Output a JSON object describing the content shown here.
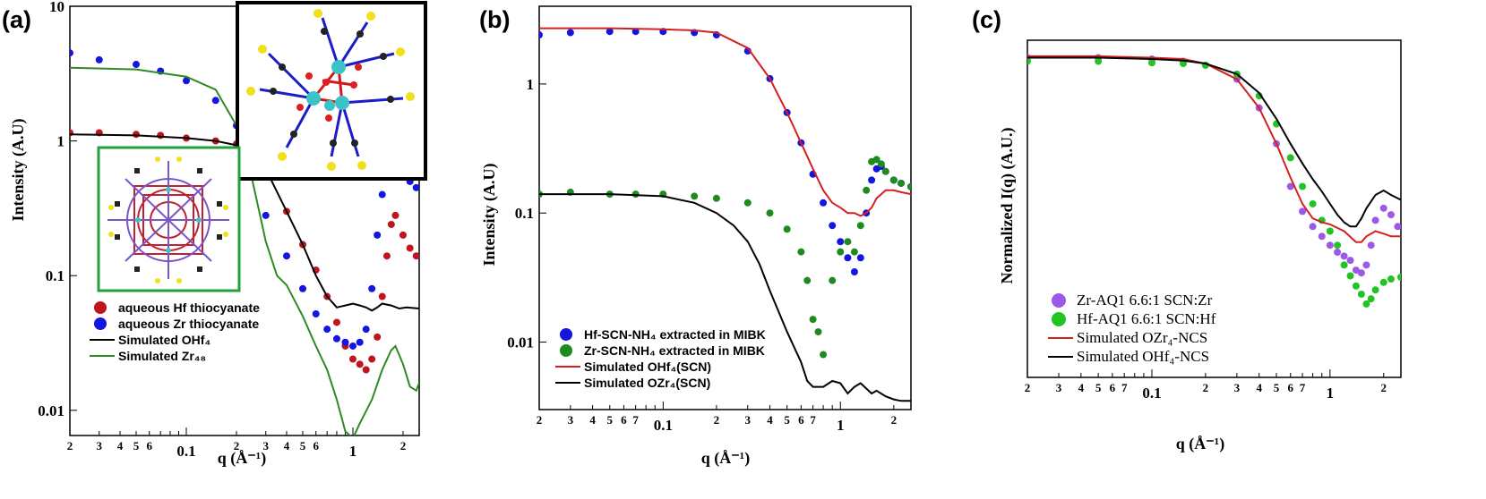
{
  "chart_data": [
    {
      "panel_label": "(a)",
      "type": "scatter",
      "xscale": "log",
      "yscale": "log",
      "xlim": [
        0.02,
        2.5
      ],
      "ylim": [
        0.0065,
        10
      ],
      "xlabel": "q (Å⁻¹)",
      "ylabel": "Intensity (A.U)",
      "xticks": [
        "2",
        "3",
        "4",
        "5",
        "6",
        "0.1",
        "2",
        "3",
        "4",
        "5",
        "6",
        "1",
        "2"
      ],
      "yticks": [
        "10",
        "1",
        "0.1",
        "0.01"
      ],
      "legend_position": "bottom-left",
      "series": [
        {
          "name": "aqueous Hf thiocyanate",
          "kind": "points",
          "color": "#c0151c",
          "x": [
            0.02,
            0.03,
            0.05,
            0.07,
            0.1,
            0.15,
            0.2,
            0.3,
            0.4,
            0.5,
            0.6,
            0.7,
            0.8,
            0.9,
            1.0,
            1.1,
            1.2,
            1.3,
            1.4,
            1.5,
            1.6,
            1.7,
            1.8,
            2.0,
            2.2,
            2.4
          ],
          "y": [
            1.15,
            1.15,
            1.12,
            1.1,
            1.05,
            1.0,
            0.95,
            0.62,
            0.3,
            0.17,
            0.11,
            0.07,
            0.045,
            0.03,
            0.024,
            0.022,
            0.02,
            0.024,
            0.035,
            0.07,
            0.14,
            0.24,
            0.28,
            0.2,
            0.16,
            0.14
          ]
        },
        {
          "name": "aqueous Zr thiocyanate",
          "kind": "points",
          "color": "#1515e0",
          "x": [
            0.02,
            0.03,
            0.05,
            0.07,
            0.1,
            0.15,
            0.2,
            0.3,
            0.4,
            0.5,
            0.6,
            0.7,
            0.8,
            0.9,
            1.0,
            1.1,
            1.2,
            1.3,
            1.4,
            1.5,
            1.6,
            1.8,
            2.0,
            2.2,
            2.4
          ],
          "y": [
            4.5,
            4.0,
            3.7,
            3.3,
            2.8,
            2.0,
            1.3,
            0.28,
            0.14,
            0.08,
            0.052,
            0.04,
            0.034,
            0.032,
            0.03,
            0.032,
            0.04,
            0.08,
            0.2,
            0.4,
            0.6,
            0.7,
            0.6,
            0.5,
            0.45
          ]
        },
        {
          "name": "Simulated OHf₄",
          "kind": "line",
          "color": "#000000",
          "x": [
            0.02,
            0.05,
            0.1,
            0.15,
            0.2,
            0.25,
            0.3,
            0.4,
            0.5,
            0.6,
            0.7,
            0.8,
            0.9,
            1.0,
            1.1,
            1.2,
            1.3,
            1.4,
            1.5,
            1.7,
            1.9,
            2.1,
            2.5
          ],
          "y": [
            1.12,
            1.1,
            1.05,
            1.0,
            0.93,
            0.8,
            0.62,
            0.3,
            0.17,
            0.1,
            0.07,
            0.058,
            0.06,
            0.062,
            0.06,
            0.058,
            0.055,
            0.058,
            0.062,
            0.06,
            0.057,
            0.058,
            0.057
          ]
        },
        {
          "name": "Simulated Zr₄₈",
          "kind": "line",
          "color": "#2e8b22",
          "x": [
            0.02,
            0.05,
            0.1,
            0.15,
            0.2,
            0.25,
            0.3,
            0.35,
            0.4,
            0.5,
            0.6,
            0.7,
            0.8,
            0.9,
            1.0,
            1.1,
            1.3,
            1.5,
            1.7,
            1.8,
            2.0,
            2.2,
            2.4,
            2.5
          ],
          "y": [
            3.5,
            3.4,
            3.0,
            2.4,
            1.3,
            0.5,
            0.18,
            0.1,
            0.085,
            0.05,
            0.03,
            0.02,
            0.012,
            0.007,
            0.0062,
            0.008,
            0.012,
            0.02,
            0.028,
            0.03,
            0.022,
            0.015,
            0.014,
            0.016
          ]
        }
      ]
    },
    {
      "panel_label": "(b)",
      "type": "scatter",
      "xscale": "log",
      "yscale": "log",
      "xlim": [
        0.02,
        2.5
      ],
      "ylim": [
        0.003,
        4
      ],
      "xlabel": "q (Å⁻¹)",
      "ylabel": "Intensity (A.U)",
      "xticks": [
        "2",
        "3",
        "4",
        "5",
        "6",
        "7",
        "0.1",
        "2",
        "3",
        "4",
        "5",
        "6",
        "7",
        "1",
        "2"
      ],
      "yticks": [
        "1",
        "0.1",
        "0.01"
      ],
      "legend_position": "bottom-left",
      "series": [
        {
          "name": "Hf-SCN-NH₄ extracted in MIBK",
          "kind": "points",
          "color": "#1515e0",
          "x": [
            0.02,
            0.03,
            0.05,
            0.07,
            0.1,
            0.15,
            0.2,
            0.3,
            0.4,
            0.5,
            0.6,
            0.7,
            0.8,
            0.9,
            1.0,
            1.1,
            1.2,
            1.3,
            1.4,
            1.5,
            1.6,
            1.7,
            1.8,
            2.0,
            2.2,
            2.5
          ],
          "y": [
            2.4,
            2.5,
            2.55,
            2.55,
            2.55,
            2.5,
            2.4,
            1.8,
            1.1,
            0.6,
            0.35,
            0.2,
            0.12,
            0.08,
            0.06,
            0.045,
            0.035,
            0.045,
            0.1,
            0.18,
            0.22,
            0.23,
            0.21,
            0.18,
            0.17,
            0.16
          ]
        },
        {
          "name": "Zr-SCN-NH₄ extracted in MIBK",
          "kind": "points",
          "color": "#1f8b1f",
          "x": [
            0.02,
            0.03,
            0.05,
            0.07,
            0.1,
            0.15,
            0.2,
            0.3,
            0.4,
            0.5,
            0.6,
            0.65,
            0.7,
            0.75,
            0.8,
            0.9,
            1.0,
            1.1,
            1.2,
            1.3,
            1.4,
            1.5,
            1.6,
            1.7,
            1.8,
            2.0,
            2.2,
            2.5
          ],
          "y": [
            0.14,
            0.145,
            0.14,
            0.14,
            0.14,
            0.135,
            0.13,
            0.12,
            0.1,
            0.075,
            0.05,
            0.03,
            0.015,
            0.012,
            0.008,
            0.03,
            0.05,
            0.06,
            0.05,
            0.08,
            0.15,
            0.25,
            0.26,
            0.24,
            0.21,
            0.18,
            0.17,
            0.16
          ]
        },
        {
          "name": "Simulated OHf₄(SCN)",
          "kind": "line",
          "color": "#d42020",
          "x": [
            0.02,
            0.05,
            0.1,
            0.15,
            0.2,
            0.3,
            0.4,
            0.5,
            0.6,
            0.7,
            0.8,
            0.9,
            1.0,
            1.1,
            1.2,
            1.3,
            1.4,
            1.5,
            1.6,
            1.8,
            2.0,
            2.2,
            2.5
          ],
          "y": [
            2.7,
            2.7,
            2.65,
            2.6,
            2.5,
            1.9,
            1.1,
            0.6,
            0.35,
            0.22,
            0.15,
            0.12,
            0.11,
            0.1,
            0.1,
            0.095,
            0.1,
            0.11,
            0.13,
            0.15,
            0.15,
            0.145,
            0.14
          ]
        },
        {
          "name": "Simulated OZr₄(SCN)",
          "kind": "line",
          "color": "#000000",
          "x": [
            0.02,
            0.05,
            0.1,
            0.15,
            0.2,
            0.25,
            0.3,
            0.35,
            0.4,
            0.5,
            0.6,
            0.65,
            0.7,
            0.8,
            0.9,
            1.0,
            1.1,
            1.2,
            1.3,
            1.5,
            1.6,
            1.8,
            2.0,
            2.2,
            2.5
          ],
          "y": [
            0.14,
            0.14,
            0.135,
            0.12,
            0.1,
            0.08,
            0.06,
            0.04,
            0.025,
            0.012,
            0.007,
            0.005,
            0.0045,
            0.0045,
            0.005,
            0.0048,
            0.004,
            0.0045,
            0.0048,
            0.004,
            0.0042,
            0.0038,
            0.0036,
            0.0035,
            0.0035
          ]
        }
      ]
    },
    {
      "panel_label": "(c)",
      "type": "scatter",
      "xscale": "log",
      "yscale": "log",
      "xlim": [
        0.02,
        2.5
      ],
      "ylim": [
        0.001,
        1
      ],
      "xlabel": "q (Å⁻¹)",
      "ylabel": "Normalized I(q) (A.U.)",
      "xticks": [
        "2",
        "3",
        "4",
        "5",
        "6",
        "7",
        "0.1",
        "2",
        "3",
        "4",
        "5",
        "6",
        "7",
        "1",
        "2"
      ],
      "yticks": [],
      "legend_position": "bottom-left",
      "series": [
        {
          "name": "Zr-AQ1  6.6:1 SCN:Zr",
          "kind": "points",
          "color": "#9b59e6",
          "x": [
            0.02,
            0.05,
            0.1,
            0.15,
            0.2,
            0.3,
            0.4,
            0.5,
            0.6,
            0.7,
            0.8,
            0.9,
            1.0,
            1.1,
            1.2,
            1.3,
            1.4,
            1.5,
            1.6,
            1.7,
            1.8,
            2.0,
            2.2,
            2.4
          ],
          "y": [
            0.7,
            0.7,
            0.68,
            0.65,
            0.6,
            0.45,
            0.25,
            0.12,
            0.05,
            0.03,
            0.022,
            0.018,
            0.015,
            0.013,
            0.012,
            0.011,
            0.009,
            0.0085,
            0.01,
            0.015,
            0.025,
            0.032,
            0.028,
            0.022
          ]
        },
        {
          "name": "Hf-AQ1  6.6:1 SCN:Hf",
          "kind": "points",
          "color": "#22c322",
          "x": [
            0.02,
            0.05,
            0.1,
            0.15,
            0.2,
            0.3,
            0.4,
            0.5,
            0.6,
            0.7,
            0.8,
            0.9,
            1.0,
            1.1,
            1.2,
            1.3,
            1.4,
            1.5,
            1.6,
            1.7,
            1.8,
            2.0,
            2.2,
            2.5
          ],
          "y": [
            0.65,
            0.65,
            0.63,
            0.62,
            0.6,
            0.5,
            0.32,
            0.18,
            0.09,
            0.05,
            0.035,
            0.025,
            0.02,
            0.015,
            0.01,
            0.008,
            0.0065,
            0.0055,
            0.0045,
            0.005,
            0.006,
            0.007,
            0.0075,
            0.0078
          ]
        },
        {
          "name": "Simulated OZr₄-NCS",
          "kind": "line",
          "color": "#d42020",
          "x": [
            0.02,
            0.05,
            0.1,
            0.15,
            0.2,
            0.3,
            0.4,
            0.5,
            0.6,
            0.7,
            0.8,
            0.9,
            1.0,
            1.2,
            1.4,
            1.5,
            1.6,
            1.8,
            2.0,
            2.2,
            2.5
          ],
          "y": [
            0.72,
            0.72,
            0.7,
            0.68,
            0.62,
            0.45,
            0.25,
            0.12,
            0.06,
            0.035,
            0.026,
            0.024,
            0.023,
            0.02,
            0.016,
            0.016,
            0.018,
            0.02,
            0.019,
            0.018,
            0.018
          ]
        },
        {
          "name": "Simulated OHf₄-NCS",
          "kind": "line",
          "color": "#000000",
          "x": [
            0.02,
            0.05,
            0.1,
            0.15,
            0.2,
            0.3,
            0.4,
            0.5,
            0.6,
            0.7,
            0.8,
            0.9,
            1.0,
            1.1,
            1.2,
            1.3,
            1.4,
            1.5,
            1.6,
            1.8,
            2.0,
            2.2,
            2.5
          ],
          "y": [
            0.7,
            0.7,
            0.68,
            0.66,
            0.62,
            0.5,
            0.34,
            0.2,
            0.12,
            0.08,
            0.058,
            0.045,
            0.035,
            0.028,
            0.024,
            0.022,
            0.022,
            0.026,
            0.032,
            0.042,
            0.046,
            0.042,
            0.038
          ]
        }
      ]
    }
  ]
}
